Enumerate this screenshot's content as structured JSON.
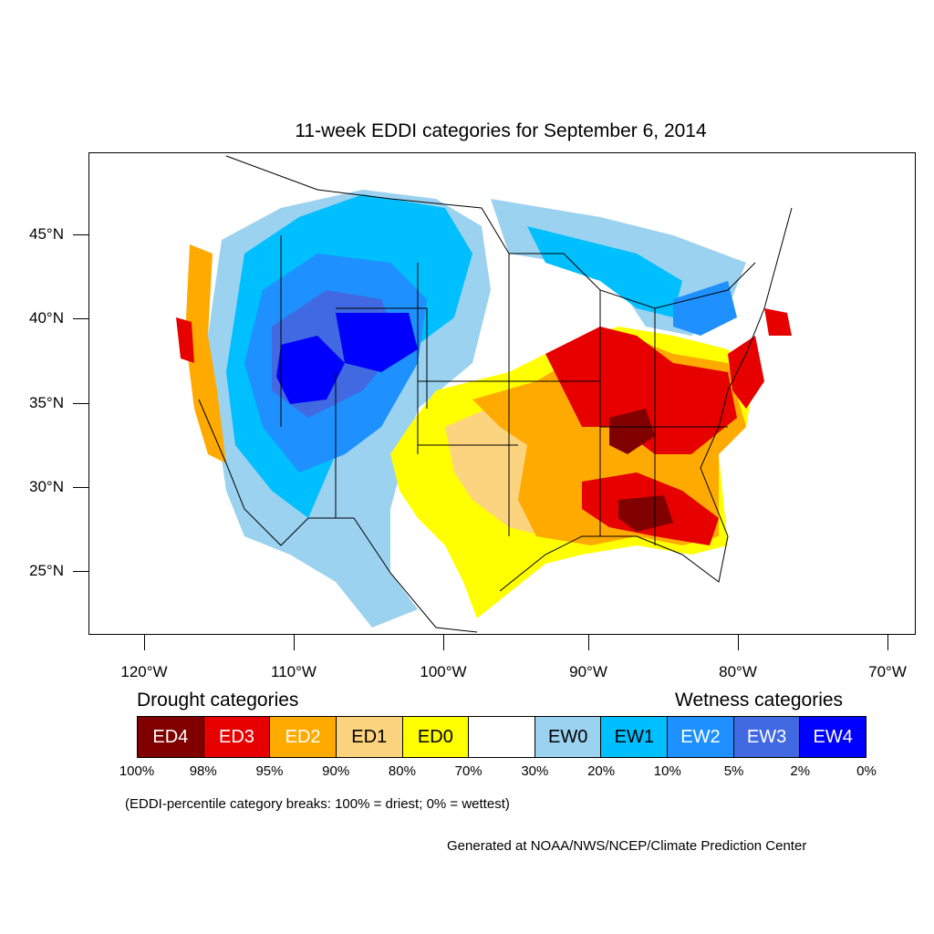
{
  "title": "11-week EDDI categories for September 6, 2014",
  "latitude_labels": [
    "45°N",
    "40°N",
    "35°N",
    "30°N",
    "25°N"
  ],
  "longitude_labels": [
    "120°W",
    "110°W",
    "100°W",
    "90°W",
    "80°W",
    "70°W"
  ],
  "legend": {
    "drought_heading": "Drought categories",
    "wetness_heading": "Wetness categories",
    "categories": [
      {
        "label": "ED4",
        "color": "#800000",
        "text_color": "#ffffff"
      },
      {
        "label": "ED3",
        "color": "#e60000",
        "text_color": "#ffffff"
      },
      {
        "label": "ED2",
        "color": "#ffaa00",
        "text_color": "#ffffff"
      },
      {
        "label": "ED1",
        "color": "#fcd37f",
        "text_color": "#000000"
      },
      {
        "label": "ED0",
        "color": "#ffff00",
        "text_color": "#000000"
      },
      {
        "label": "",
        "color": "#ffffff",
        "text_color": "#000000"
      },
      {
        "label": "EW0",
        "color": "#9ad2f0",
        "text_color": "#000000"
      },
      {
        "label": "EW1",
        "color": "#00bfff",
        "text_color": "#000000"
      },
      {
        "label": "EW2",
        "color": "#1e90ff",
        "text_color": "#ffffff"
      },
      {
        "label": "EW3",
        "color": "#4169e1",
        "text_color": "#ffffff"
      },
      {
        "label": "EW4",
        "color": "#0000ff",
        "text_color": "#ffffff"
      }
    ],
    "breaks": [
      "100%",
      "98%",
      "95%",
      "90%",
      "80%",
      "70%",
      "30%",
      "20%",
      "10%",
      "5%",
      "2%",
      "0%"
    ]
  },
  "note": "(EDDI-percentile category breaks: 100% = driest; 0% = wettest)",
  "credit": "Generated at NOAA/NWS/NCEP/Climate Prediction Center"
}
